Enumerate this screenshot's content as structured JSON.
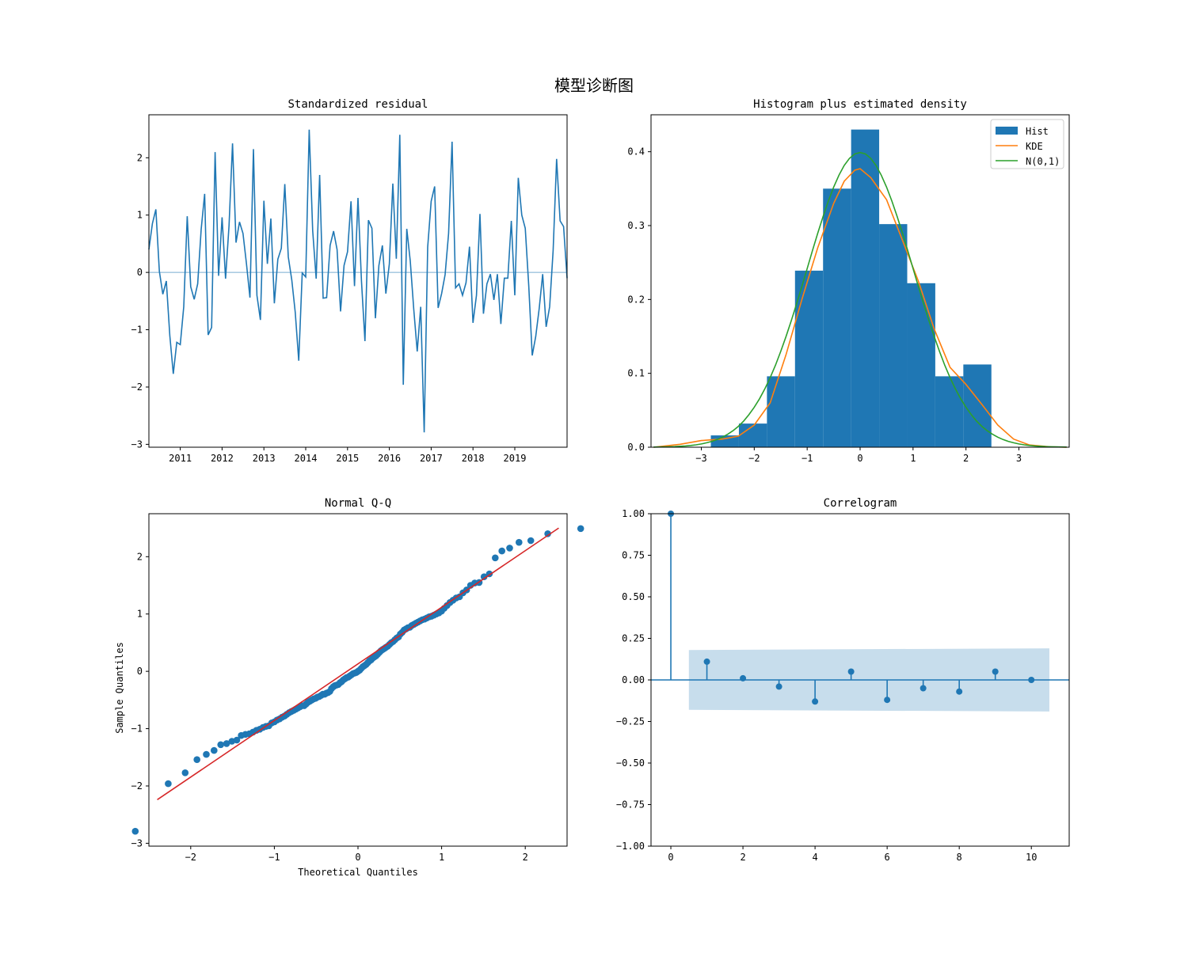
{
  "figure": {
    "title": "模型诊断图"
  },
  "chart_data": [
    {
      "type": "line",
      "title": "Standardized residual",
      "xlabel": "",
      "ylabel": "",
      "x_ticks": [
        "2011",
        "2012",
        "2013",
        "2014",
        "2015",
        "2016",
        "2017",
        "2018",
        "2019"
      ],
      "y_ticks": [
        "2",
        "1",
        "0",
        "−1",
        "−2",
        "−3"
      ],
      "ylim": [
        -3.05,
        2.75
      ],
      "xlim": [
        0,
        118
      ],
      "zero_line": 0,
      "color": "#1f77b4",
      "values": [
        0.4,
        0.85,
        1.1,
        0.02,
        -0.38,
        -0.15,
        -1.1,
        -1.77,
        -1.22,
        -1.26,
        -0.6,
        0.98,
        -0.25,
        -0.47,
        -0.2,
        0.75,
        1.37,
        -1.09,
        -0.96,
        2.1,
        -0.06,
        0.96,
        -0.11,
        0.82,
        2.25,
        0.52,
        0.88,
        0.68,
        0.15,
        -0.44,
        2.15,
        -0.4,
        -0.83,
        1.25,
        0.15,
        0.94,
        -0.54,
        0.23,
        0.42,
        1.54,
        0.27,
        -0.13,
        -0.7,
        -1.54,
        -0.01,
        -0.08,
        2.49,
        0.73,
        -0.11,
        1.7,
        -0.45,
        -0.44,
        0.47,
        0.72,
        0.4,
        -0.68,
        0.12,
        0.36,
        1.24,
        -0.24,
        1.3,
        -0.15,
        -1.2,
        0.91,
        0.77,
        -0.8,
        0.12,
        0.47,
        -0.37,
        0.15,
        1.55,
        0.24,
        2.4,
        -1.96,
        0.76,
        0.2,
        -0.64,
        -1.38,
        -0.6,
        -2.79,
        0.44,
        1.24,
        1.5,
        -0.62,
        -0.37,
        -0.04,
        0.68,
        2.28,
        -0.27,
        -0.2,
        -0.4,
        -0.18,
        0.45,
        -0.88,
        -0.4,
        1.02,
        -0.72,
        -0.2,
        -0.03,
        -0.48,
        -0.03,
        -0.9,
        -0.1,
        -0.1,
        0.9,
        -0.4,
        1.65,
        1.0,
        0.77,
        -0.23,
        -1.45,
        -1.12,
        -0.63,
        -0.03,
        -0.95,
        -0.6,
        0.38,
        1.98,
        0.9,
        0.8,
        -0.1
      ]
    },
    {
      "type": "bar",
      "title": "Histogram plus estimated density",
      "x_ticks": [
        "−3",
        "−2",
        "−1",
        "0",
        "1",
        "2",
        "3"
      ],
      "y_ticks": [
        "0.0",
        "0.1",
        "0.2",
        "0.3",
        "0.4"
      ],
      "xlim": [
        -3.95,
        3.95
      ],
      "ylim": [
        0,
        0.45
      ],
      "bins": [
        {
          "x0": -2.82,
          "x1": -2.29,
          "height": 0.016
        },
        {
          "x0": -2.29,
          "x1": -1.76,
          "height": 0.032
        },
        {
          "x0": -1.76,
          "x1": -1.23,
          "height": 0.096
        },
        {
          "x0": -1.23,
          "x1": -0.7,
          "height": 0.239
        },
        {
          "x0": -0.7,
          "x1": -0.17,
          "height": 0.35
        },
        {
          "x0": -0.17,
          "x1": 0.36,
          "height": 0.43
        },
        {
          "x0": 0.36,
          "x1": 0.89,
          "height": 0.302
        },
        {
          "x0": 0.89,
          "x1": 1.42,
          "height": 0.222
        },
        {
          "x0": 1.42,
          "x1": 1.95,
          "height": 0.096
        },
        {
          "x0": 1.95,
          "x1": 2.48,
          "height": 0.112
        }
      ],
      "kde": {
        "x": [
          -3.9,
          -3.4,
          -3.0,
          -2.6,
          -2.3,
          -2.0,
          -1.7,
          -1.4,
          -1.1,
          -0.8,
          -0.5,
          -0.3,
          -0.1,
          0.0,
          0.2,
          0.5,
          0.8,
          1.1,
          1.4,
          1.7,
          2.0,
          2.3,
          2.6,
          2.9,
          3.2,
          3.6,
          3.9
        ],
        "y": [
          0.0,
          0.004,
          0.009,
          0.011,
          0.015,
          0.03,
          0.06,
          0.125,
          0.2,
          0.27,
          0.33,
          0.36,
          0.375,
          0.377,
          0.365,
          0.335,
          0.28,
          0.225,
          0.16,
          0.108,
          0.085,
          0.058,
          0.03,
          0.011,
          0.003,
          0.0005,
          0.0
        ]
      },
      "normal_xrange": [
        -3.9,
        3.9
      ],
      "series": [
        {
          "name": "Hist",
          "color": "#1f77b4"
        },
        {
          "name": "KDE",
          "color": "#ff7f0e"
        },
        {
          "name": "N(0,1)",
          "color": "#2ca02c"
        }
      ],
      "legend": "top-right"
    },
    {
      "type": "scatter",
      "title": "Normal Q-Q",
      "xlabel": "Theoretical Quantiles",
      "ylabel": "Sample Quantiles",
      "x_ticks": [
        "−2",
        "−1",
        "0",
        "1",
        "2"
      ],
      "y_ticks": [
        "2",
        "1",
        "0",
        "−1",
        "−2",
        "−3"
      ],
      "xlim": [
        -2.5,
        2.5
      ],
      "ylim": [
        -3.05,
        2.75
      ],
      "sample_quantiles": [
        -2.79,
        -1.96,
        -1.77,
        -1.54,
        -1.45,
        -1.38,
        -1.28,
        -1.26,
        -1.22,
        -1.2,
        -1.12,
        -1.1,
        -1.09,
        -1.06,
        -1.03,
        -1.01,
        -0.98,
        -0.96,
        -0.95,
        -0.9,
        -0.88,
        -0.85,
        -0.83,
        -0.8,
        -0.78,
        -0.75,
        -0.72,
        -0.7,
        -0.68,
        -0.66,
        -0.64,
        -0.62,
        -0.6,
        -0.6,
        -0.57,
        -0.54,
        -0.52,
        -0.5,
        -0.48,
        -0.47,
        -0.45,
        -0.44,
        -0.42,
        -0.4,
        -0.4,
        -0.38,
        -0.37,
        -0.35,
        -0.3,
        -0.27,
        -0.25,
        -0.24,
        -0.23,
        -0.2,
        -0.18,
        -0.15,
        -0.13,
        -0.11,
        -0.1,
        -0.08,
        -0.06,
        -0.04,
        -0.03,
        -0.02,
        0.0,
        0.02,
        0.05,
        0.08,
        0.1,
        0.12,
        0.15,
        0.18,
        0.2,
        0.23,
        0.25,
        0.27,
        0.3,
        0.33,
        0.36,
        0.38,
        0.4,
        0.42,
        0.44,
        0.47,
        0.5,
        0.52,
        0.55,
        0.58,
        0.6,
        0.65,
        0.68,
        0.72,
        0.74,
        0.76,
        0.77,
        0.8,
        0.82,
        0.84,
        0.86,
        0.88,
        0.9,
        0.91,
        0.93,
        0.95,
        0.96,
        0.98,
        1.0,
        1.02,
        1.05,
        1.1,
        1.15,
        1.2,
        1.24,
        1.28,
        1.3,
        1.37,
        1.42,
        1.5,
        1.54,
        1.55,
        1.65,
        1.7,
        1.98,
        2.1,
        2.15,
        2.25,
        2.28,
        2.4,
        2.49
      ],
      "fit_line": {
        "x": [
          -2.4,
          2.4
        ],
        "y": [
          -2.24,
          2.5
        ],
        "color": "#d62728"
      },
      "color": "#1f77b4"
    },
    {
      "type": "stem",
      "title": "Correlogram",
      "x_ticks": [
        "0",
        "2",
        "4",
        "6",
        "8",
        "10"
      ],
      "y_ticks": [
        "1.00",
        "0.75",
        "0.50",
        "0.25",
        "0.00",
        "−0.25",
        "−0.50",
        "−0.75",
        "−1.00"
      ],
      "xlim": [
        -0.55,
        11.05
      ],
      "ylim": [
        -1.0,
        1.0
      ],
      "lags": [
        0,
        1,
        2,
        3,
        4,
        5,
        6,
        7,
        8,
        9,
        10
      ],
      "values": [
        1.0,
        0.11,
        0.01,
        -0.04,
        -0.13,
        0.05,
        -0.12,
        -0.05,
        -0.07,
        0.05,
        0.0
      ],
      "confidence_band": {
        "x": [
          0.5,
          10.5
        ],
        "upper": [
          0.18,
          0.19
        ],
        "lower": [
          -0.18,
          -0.19
        ]
      },
      "color": "#1f77b4"
    }
  ]
}
